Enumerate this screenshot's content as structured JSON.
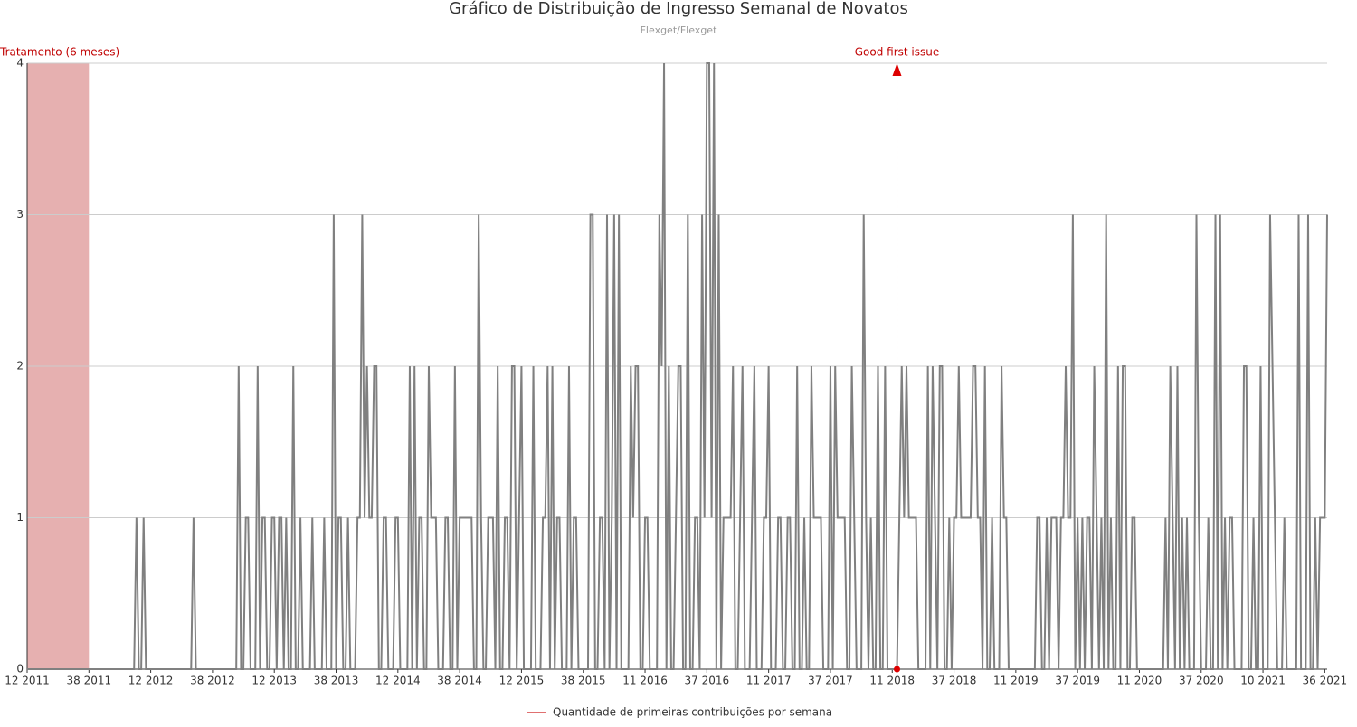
{
  "chart_data": {
    "type": "line",
    "title": "Gráfico de Distribuição de Ingresso Semanal de Novatos",
    "subtitle": "Flexget/Flexget",
    "categories": [
      "12 2011",
      null,
      null,
      null,
      null,
      null,
      null,
      null,
      null,
      null,
      null,
      null,
      null,
      null,
      null,
      null,
      null,
      null,
      null,
      null,
      null,
      null,
      null,
      null,
      null,
      null,
      "38 2011",
      null,
      null,
      null,
      null,
      null,
      null,
      null,
      null,
      null,
      null,
      null,
      null,
      null,
      null,
      null,
      null,
      null,
      null,
      null,
      null,
      null,
      null,
      null,
      null,
      null,
      "12 2012",
      null,
      null,
      null,
      null,
      null,
      null,
      null,
      null,
      null,
      null,
      null,
      null,
      null,
      null,
      null,
      null,
      null,
      null,
      null,
      null,
      null,
      null,
      null,
      null,
      null,
      "38 2012",
      null,
      null,
      null,
      null,
      null,
      null,
      null,
      null,
      null,
      null,
      null,
      null,
      null,
      null,
      null,
      null,
      null,
      null,
      null,
      null,
      null,
      null,
      null,
      null,
      null,
      "12 2013",
      null,
      null,
      null,
      null,
      null,
      null,
      null,
      null,
      null,
      null,
      null,
      null,
      null,
      null,
      null,
      null,
      null,
      null,
      null,
      null,
      null,
      null,
      null,
      null,
      null,
      "38 2013",
      null,
      null,
      null,
      null,
      null,
      null,
      null,
      null,
      null,
      null,
      null,
      null,
      null,
      null,
      null,
      null,
      null,
      null,
      null,
      null,
      null,
      null,
      null,
      null,
      null,
      "12 2014",
      null,
      null,
      null,
      null,
      null,
      null,
      null,
      null,
      null,
      null,
      null,
      null,
      null,
      null,
      null,
      null,
      null,
      null,
      null,
      null,
      null,
      null,
      null,
      null,
      null,
      "38 2014",
      null,
      null,
      null,
      null,
      null,
      null,
      null,
      null,
      null,
      null,
      null,
      null,
      null,
      null,
      null,
      null,
      null,
      null,
      null,
      null,
      null,
      null,
      null,
      null,
      null,
      "12 2015",
      null,
      null,
      null,
      null,
      null,
      null,
      null,
      null,
      null,
      null,
      null,
      null,
      null,
      null,
      null,
      null,
      null,
      null,
      null,
      null,
      null,
      null,
      null,
      null,
      null,
      "38 2015",
      null,
      null,
      null,
      null,
      null,
      null,
      null,
      null,
      null,
      null,
      null,
      null,
      null,
      null,
      null,
      null,
      null,
      null,
      null,
      null,
      null,
      null,
      null,
      null,
      null,
      "11 2016",
      null,
      null,
      null,
      null,
      null,
      null,
      null,
      null,
      null,
      null,
      null,
      null,
      null,
      null,
      null,
      null,
      null,
      null,
      null,
      null,
      null,
      null,
      null,
      null,
      null,
      "37 2016",
      null,
      null,
      null,
      null,
      null,
      null,
      null,
      null,
      null,
      null,
      null,
      null,
      null,
      null,
      null,
      null,
      null,
      null,
      null,
      null,
      null,
      null,
      null,
      null,
      null,
      "11 2017",
      null,
      null,
      null,
      null,
      null,
      null,
      null,
      null,
      null,
      null,
      null,
      null,
      null,
      null,
      null,
      null,
      null,
      null,
      null,
      null,
      null,
      null,
      null,
      null,
      null,
      "37 2017",
      null,
      null,
      null,
      null,
      null,
      null,
      null,
      null,
      null,
      null,
      null,
      null,
      null,
      null,
      null,
      null,
      null,
      null,
      null,
      null,
      null,
      null,
      null,
      null,
      null,
      "11 2018",
      null,
      null,
      null,
      null,
      null,
      null,
      null,
      null,
      null,
      null,
      null,
      null,
      null,
      null,
      null,
      null,
      null,
      null,
      null,
      null,
      null,
      null,
      null,
      null,
      null,
      "37 2018",
      null,
      null,
      null,
      null,
      null,
      null,
      null,
      null,
      null,
      null,
      null,
      null,
      null,
      null,
      null,
      null,
      null,
      null,
      null,
      null,
      null,
      null,
      null,
      null,
      null,
      "11 2019",
      null,
      null,
      null,
      null,
      null,
      null,
      null,
      null,
      null,
      null,
      null,
      null,
      null,
      null,
      null,
      null,
      null,
      null,
      null,
      null,
      null,
      null,
      null,
      null,
      null,
      "37 2019",
      null,
      null,
      null,
      null,
      null,
      null,
      null,
      null,
      null,
      null,
      null,
      null,
      null,
      null,
      null,
      null,
      null,
      null,
      null,
      null,
      null,
      null,
      null,
      null,
      null,
      "11 2020",
      null,
      null,
      null,
      null,
      null,
      null,
      null,
      null,
      null,
      null,
      null,
      null,
      null,
      null,
      null,
      null,
      null,
      null,
      null,
      null,
      null,
      null,
      null,
      null,
      null,
      "37 2020",
      null,
      null,
      null,
      null,
      null,
      null,
      null,
      null,
      null,
      null,
      null,
      null,
      null,
      null,
      null,
      null,
      null,
      null,
      null,
      null,
      null,
      null,
      null,
      null,
      null,
      "10 2021",
      null,
      null,
      null,
      null,
      null,
      null,
      null,
      null,
      null,
      null,
      null,
      null,
      null,
      null,
      null,
      null,
      null,
      null,
      null,
      null,
      null,
      null,
      null,
      null,
      null,
      "36 2021",
      null
    ],
    "series": [
      {
        "name": "Quantidade de primeiras contribuições por semana",
        "color": "#808080",
        "legend_color": "#e07070",
        "values": [
          0,
          0,
          0,
          0,
          0,
          0,
          0,
          0,
          0,
          0,
          0,
          0,
          0,
          0,
          0,
          0,
          0,
          0,
          0,
          0,
          0,
          0,
          0,
          0,
          0,
          0,
          0,
          0,
          0,
          0,
          0,
          0,
          0,
          0,
          0,
          0,
          0,
          0,
          0,
          0,
          0,
          0,
          0,
          0,
          0,
          0,
          1,
          0,
          0,
          1,
          0,
          0,
          0,
          0,
          0,
          0,
          0,
          0,
          0,
          0,
          0,
          0,
          0,
          0,
          0,
          0,
          0,
          0,
          0,
          0,
          1,
          0,
          0,
          0,
          0,
          0,
          0,
          0,
          0,
          0,
          0,
          0,
          0,
          0,
          0,
          0,
          0,
          0,
          0,
          2,
          0,
          0,
          1,
          1,
          0,
          0,
          0,
          2,
          0,
          1,
          1,
          0,
          0,
          1,
          1,
          0,
          1,
          1,
          0,
          1,
          0,
          0,
          2,
          0,
          0,
          1,
          0,
          0,
          0,
          0,
          1,
          0,
          0,
          0,
          0,
          1,
          0,
          0,
          0,
          3,
          0,
          1,
          1,
          0,
          0,
          1,
          0,
          0,
          0,
          1,
          1,
          3,
          1,
          2,
          1,
          1,
          2,
          2,
          0,
          0,
          1,
          1,
          0,
          0,
          0,
          1,
          1,
          0,
          0,
          0,
          0,
          2,
          0,
          2,
          0,
          1,
          1,
          0,
          0,
          2,
          1,
          1,
          1,
          0,
          0,
          0,
          1,
          1,
          0,
          0,
          2,
          0,
          1,
          1,
          1,
          1,
          1,
          1,
          0,
          0,
          3,
          1,
          0,
          0,
          1,
          1,
          1,
          0,
          2,
          0,
          0,
          1,
          1,
          0,
          2,
          2,
          0,
          1,
          2,
          0,
          0,
          0,
          0,
          2,
          0,
          0,
          0,
          1,
          1,
          2,
          0,
          2,
          0,
          1,
          1,
          0,
          0,
          0,
          2,
          0,
          1,
          1,
          0,
          0,
          0,
          0,
          0,
          3,
          3,
          0,
          0,
          1,
          1,
          0,
          3,
          0,
          1,
          3,
          0,
          3,
          0,
          0,
          0,
          0,
          2,
          1,
          2,
          2,
          0,
          0,
          1,
          1,
          0,
          0,
          0,
          0,
          3,
          2,
          4,
          0,
          2,
          0,
          0,
          1,
          2,
          2,
          0,
          0,
          3,
          0,
          0,
          1,
          1,
          0,
          3,
          1,
          4,
          4,
          1,
          4,
          0,
          3,
          0,
          1,
          1,
          1,
          1,
          2,
          0,
          0,
          1,
          2,
          0,
          0,
          0,
          1,
          2,
          0,
          0,
          0,
          1,
          1,
          2,
          0,
          0,
          0,
          1,
          1,
          0,
          0,
          1,
          1,
          0,
          0,
          2,
          0,
          0,
          1,
          0,
          0,
          2,
          1,
          1,
          1,
          1,
          0,
          0,
          0,
          2,
          0,
          2,
          1,
          1,
          1,
          1,
          0,
          0,
          2,
          1,
          0,
          0,
          0,
          3,
          1,
          0,
          1,
          0,
          0,
          2,
          0,
          0,
          2,
          0,
          0,
          0,
          0,
          0,
          1,
          2,
          1,
          2,
          1,
          1,
          1,
          1,
          0,
          0,
          0,
          0,
          2,
          0,
          2,
          1,
          0,
          2,
          2,
          0,
          0,
          1,
          0,
          1,
          1,
          2,
          1,
          1,
          1,
          1,
          1,
          2,
          2,
          1,
          1,
          0,
          2,
          0,
          0,
          1,
          0,
          0,
          0,
          2,
          1,
          1,
          0,
          0,
          0,
          0,
          0,
          0,
          0,
          0,
          0,
          0,
          0,
          0,
          1,
          1,
          0,
          0,
          1,
          0,
          1,
          1,
          1,
          0,
          1,
          1,
          2,
          1,
          1,
          3,
          0,
          1,
          0,
          1,
          0,
          1,
          1,
          0,
          2,
          1,
          0,
          1,
          0,
          3,
          0,
          1,
          0,
          0,
          2,
          0,
          2,
          2,
          0,
          0,
          1,
          1,
          0,
          0,
          0,
          0,
          0,
          0,
          0,
          0,
          0,
          0,
          0,
          0,
          1,
          0,
          2,
          1,
          0,
          2,
          0,
          1,
          0,
          1,
          0,
          0,
          0,
          3,
          1,
          0,
          0,
          0,
          1,
          0,
          0,
          3,
          0,
          3,
          0,
          1,
          0,
          1,
          1,
          0,
          0,
          0,
          0,
          2,
          2,
          0,
          0,
          1,
          0,
          0,
          2,
          0,
          0,
          0,
          3,
          2,
          1,
          0,
          0,
          0,
          1,
          0,
          0,
          0,
          0,
          0,
          3,
          0,
          0,
          0,
          3,
          0,
          0,
          1,
          0,
          1,
          1,
          1,
          3
        ]
      }
    ],
    "ylim": [
      0,
      4
    ],
    "yticks": [
      0,
      1,
      2,
      3,
      4
    ],
    "grid": true,
    "treatment": {
      "label": "Tratamento (6 meses)",
      "start": 0,
      "end": 26,
      "color": "#e6b0b0"
    },
    "event": {
      "label": "Good first issue",
      "index": 366,
      "color": "#dd0000"
    }
  }
}
